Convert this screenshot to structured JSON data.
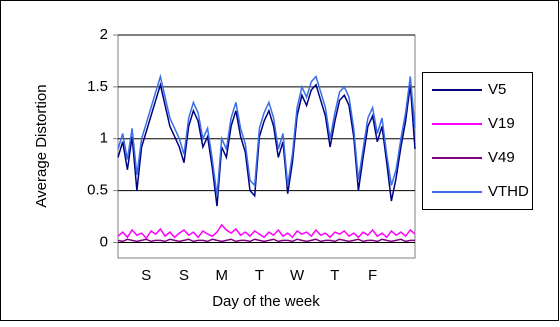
{
  "chart_data": {
    "type": "line",
    "y_label": "Average Distortion",
    "x_label": "Day of the week",
    "categories": [
      null,
      null,
      null,
      null,
      null,
      null,
      "S",
      null,
      null,
      null,
      null,
      null,
      null,
      null,
      "S",
      null,
      null,
      null,
      null,
      null,
      null,
      null,
      "M",
      null,
      null,
      null,
      null,
      null,
      null,
      null,
      "T",
      null,
      null,
      null,
      null,
      null,
      null,
      null,
      "W",
      null,
      null,
      null,
      null,
      null,
      null,
      null,
      "T",
      null,
      null,
      null,
      null,
      null,
      null,
      null,
      "F",
      null,
      null,
      null,
      null,
      null,
      null,
      null,
      null,
      null
    ],
    "series": [
      {
        "name": "V5",
        "color": "#000080",
        "values": [
          0.82,
          0.97,
          0.7,
          1.02,
          0.5,
          0.92,
          1.07,
          1.22,
          1.37,
          1.52,
          1.32,
          1.12,
          1.02,
          0.92,
          0.77,
          1.12,
          1.27,
          1.17,
          0.92,
          1.02,
          0.72,
          0.35,
          0.92,
          0.82,
          1.12,
          1.27,
          1.02,
          0.87,
          0.5,
          0.45,
          1.02,
          1.17,
          1.27,
          1.12,
          0.82,
          0.97,
          0.47,
          0.77,
          1.22,
          1.42,
          1.32,
          1.47,
          1.52,
          1.37,
          1.22,
          0.92,
          1.17,
          1.37,
          1.42,
          1.32,
          1.02,
          0.5,
          0.82,
          1.12,
          1.22,
          0.97,
          1.12,
          0.77,
          0.4,
          0.62,
          0.92,
          1.17,
          1.52,
          0.9
        ]
      },
      {
        "name": "V19",
        "color": "#ff00ff",
        "values": [
          0.06,
          0.1,
          0.05,
          0.12,
          0.07,
          0.09,
          0.04,
          0.11,
          0.08,
          0.13,
          0.06,
          0.1,
          0.05,
          0.09,
          0.12,
          0.07,
          0.1,
          0.05,
          0.11,
          0.08,
          0.06,
          0.1,
          0.17,
          0.12,
          0.09,
          0.13,
          0.07,
          0.1,
          0.06,
          0.11,
          0.08,
          0.05,
          0.1,
          0.07,
          0.12,
          0.06,
          0.09,
          0.05,
          0.11,
          0.08,
          0.1,
          0.06,
          0.12,
          0.07,
          0.09,
          0.05,
          0.1,
          0.08,
          0.11,
          0.06,
          0.09,
          0.05,
          0.1,
          0.07,
          0.12,
          0.06,
          0.09,
          0.05,
          0.11,
          0.07,
          0.1,
          0.06,
          0.12,
          0.08
        ]
      },
      {
        "name": "V49",
        "color": "#800080",
        "values": [
          0.02,
          0.01,
          0.03,
          0.02,
          0.01,
          0.02,
          0.03,
          0.01,
          0.02,
          0.02,
          0.01,
          0.03,
          0.02,
          0.01,
          0.02,
          0.03,
          0.01,
          0.02,
          0.02,
          0.01,
          0.03,
          0.02,
          0.01,
          0.02,
          0.03,
          0.01,
          0.02,
          0.02,
          0.01,
          0.03,
          0.02,
          0.01,
          0.02,
          0.03,
          0.01,
          0.02,
          0.02,
          0.01,
          0.03,
          0.02,
          0.01,
          0.02,
          0.03,
          0.01,
          0.02,
          0.02,
          0.01,
          0.03,
          0.02,
          0.01,
          0.02,
          0.03,
          0.01,
          0.02,
          0.02,
          0.01,
          0.03,
          0.02,
          0.01,
          0.02,
          0.03,
          0.01,
          0.02,
          0.02
        ]
      },
      {
        "name": "VTHD",
        "color": "#3a6ee8",
        "values": [
          0.9,
          1.05,
          0.8,
          1.1,
          0.65,
          1.0,
          1.15,
          1.3,
          1.45,
          1.6,
          1.4,
          1.2,
          1.1,
          1.0,
          0.85,
          1.2,
          1.35,
          1.25,
          1.0,
          1.1,
          0.8,
          0.45,
          1.0,
          0.9,
          1.2,
          1.35,
          1.1,
          0.95,
          0.6,
          0.55,
          1.1,
          1.25,
          1.35,
          1.2,
          0.9,
          1.05,
          0.55,
          0.85,
          1.3,
          1.5,
          1.4,
          1.55,
          1.6,
          1.45,
          1.3,
          1.0,
          1.25,
          1.45,
          1.5,
          1.4,
          1.1,
          0.6,
          0.9,
          1.2,
          1.3,
          1.05,
          1.2,
          0.85,
          0.55,
          0.7,
          1.0,
          1.25,
          1.6,
          1.1
        ]
      }
    ],
    "ylim": [
      -0.15,
      2
    ],
    "yticks": [
      0,
      0.5,
      1,
      1.5,
      2
    ],
    "grid": true
  }
}
